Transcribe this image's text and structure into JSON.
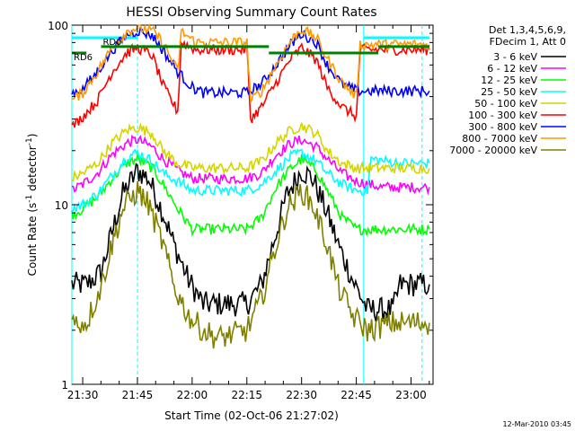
{
  "chart_data": {
    "type": "line",
    "title": "HESSI Observing Summary Count Rates",
    "xlabel": "Start Time (02-Oct-06 21:27:02)",
    "ylabel": "Count Rate (s",
    "ylabel_sup1": "-1",
    "ylabel_mid": " detector",
    "ylabel_sup2": "-1",
    "ylabel_end": ")",
    "x_unit": "minutes after 21:27:02",
    "xlim": [
      0,
      99
    ],
    "yscale": "log",
    "ylim": [
      1,
      100
    ],
    "x_ticks": [
      "21:30",
      "21:45",
      "22:00",
      "22:15",
      "22:30",
      "22:45",
      "23:00"
    ],
    "y_ticks": [
      "1",
      "10",
      "100"
    ],
    "legend_header": [
      "Det 1,3,4,5,6,9,",
      "FDecim 1, Att 0"
    ],
    "legend_position": "right",
    "series": [
      {
        "name": "3 - 6 keV",
        "color": "#000000",
        "points": [
          [
            0,
            3.6
          ],
          [
            4,
            3.6
          ],
          [
            8,
            4.2
          ],
          [
            11,
            7
          ],
          [
            14,
            11.5
          ],
          [
            18,
            15.5
          ],
          [
            21,
            14
          ],
          [
            25,
            9
          ],
          [
            28,
            6
          ],
          [
            32,
            3.8
          ],
          [
            36,
            2.8
          ],
          [
            48,
            2.8
          ],
          [
            52,
            3.6
          ],
          [
            56,
            7
          ],
          [
            59,
            11.5
          ],
          [
            63,
            15.5
          ],
          [
            66,
            14
          ],
          [
            70,
            9
          ],
          [
            73,
            6
          ],
          [
            77,
            3.8
          ],
          [
            81,
            2.6
          ],
          [
            88,
            2.6
          ],
          [
            90,
            3.6
          ],
          [
            98,
            3.6
          ]
        ]
      },
      {
        "name": "6 - 12 keV",
        "color": "#ff00ff",
        "points": [
          [
            0,
            12
          ],
          [
            3,
            13
          ],
          [
            7,
            15
          ],
          [
            11,
            19
          ],
          [
            15,
            22
          ],
          [
            18,
            23
          ],
          [
            22,
            21
          ],
          [
            25,
            18
          ],
          [
            29,
            15.5
          ],
          [
            33,
            14
          ],
          [
            48,
            14
          ],
          [
            52,
            15
          ],
          [
            56,
            19
          ],
          [
            60,
            22
          ],
          [
            63,
            23
          ],
          [
            67,
            21
          ],
          [
            70,
            18
          ],
          [
            74,
            15
          ],
          [
            78,
            13.5
          ],
          [
            85,
            12.5
          ],
          [
            90,
            12.5
          ],
          [
            98,
            12.5
          ]
        ]
      },
      {
        "name": "12 - 25 keV",
        "color": "#00ff00",
        "points": [
          [
            0,
            8.8
          ],
          [
            3,
            9.5
          ],
          [
            7,
            11
          ],
          [
            11,
            14
          ],
          [
            15,
            17
          ],
          [
            18,
            18
          ],
          [
            22,
            16
          ],
          [
            25,
            13
          ],
          [
            29,
            9.5
          ],
          [
            33,
            7.3
          ],
          [
            48,
            7.3
          ],
          [
            52,
            8.5
          ],
          [
            56,
            12.5
          ],
          [
            60,
            16
          ],
          [
            63,
            18
          ],
          [
            67,
            15.5
          ],
          [
            70,
            12
          ],
          [
            74,
            8.5
          ],
          [
            78,
            7.3
          ],
          [
            90,
            7.3
          ],
          [
            98,
            7.3
          ]
        ]
      },
      {
        "name": "25 - 50 keV",
        "color": "#00ffff",
        "points": [
          [
            0,
            9.5
          ],
          [
            3,
            10
          ],
          [
            7,
            11.5
          ],
          [
            11,
            14.5
          ],
          [
            15,
            18.5
          ],
          [
            18,
            19.5
          ],
          [
            22,
            17.5
          ],
          [
            25,
            15
          ],
          [
            29,
            13.5
          ],
          [
            33,
            12
          ],
          [
            48,
            12
          ],
          [
            52,
            13
          ],
          [
            56,
            15.5
          ],
          [
            60,
            18.5
          ],
          [
            63,
            19.5
          ],
          [
            67,
            17.5
          ],
          [
            70,
            15
          ],
          [
            74,
            13
          ],
          [
            78,
            12
          ],
          [
            81,
            12
          ],
          [
            82,
            18
          ],
          [
            90,
            17
          ],
          [
            98,
            17
          ]
        ]
      },
      {
        "name": "50 - 100 keV",
        "color": "#d4d400",
        "points": [
          [
            0,
            14
          ],
          [
            3,
            15
          ],
          [
            7,
            17
          ],
          [
            11,
            22
          ],
          [
            15,
            26
          ],
          [
            18,
            27
          ],
          [
            22,
            25
          ],
          [
            25,
            20
          ],
          [
            29,
            17
          ],
          [
            33,
            16
          ],
          [
            48,
            16
          ],
          [
            52,
            17.5
          ],
          [
            56,
            22
          ],
          [
            60,
            26
          ],
          [
            63,
            27.5
          ],
          [
            67,
            25
          ],
          [
            70,
            20
          ],
          [
            74,
            17
          ],
          [
            78,
            16
          ],
          [
            90,
            16
          ],
          [
            98,
            16
          ]
        ]
      },
      {
        "name": "100 - 300 keV",
        "color": "#ff0000",
        "points": [
          [
            0,
            27
          ],
          [
            3,
            31
          ],
          [
            7,
            38
          ],
          [
            11,
            55
          ],
          [
            15,
            70
          ],
          [
            18,
            75
          ],
          [
            22,
            68
          ],
          [
            25,
            46
          ],
          [
            29,
            33
          ],
          [
            30,
            80
          ],
          [
            34,
            73
          ],
          [
            48,
            73
          ],
          [
            49,
            30
          ],
          [
            52,
            35
          ],
          [
            56,
            48
          ],
          [
            60,
            65
          ],
          [
            63,
            75
          ],
          [
            67,
            64
          ],
          [
            70,
            45
          ],
          [
            74,
            35
          ],
          [
            78,
            31
          ],
          [
            79,
            73
          ],
          [
            90,
            73
          ],
          [
            98,
            73
          ]
        ]
      },
      {
        "name": "300 - 800 keV",
        "color": "#0000ff",
        "points": [
          [
            0,
            42
          ],
          [
            3,
            44
          ],
          [
            7,
            55
          ],
          [
            11,
            72
          ],
          [
            15,
            88
          ],
          [
            18,
            93
          ],
          [
            22,
            88
          ],
          [
            25,
            72
          ],
          [
            29,
            55
          ],
          [
            33,
            45
          ],
          [
            36,
            42
          ],
          [
            48,
            42
          ],
          [
            52,
            47
          ],
          [
            56,
            60
          ],
          [
            60,
            78
          ],
          [
            63,
            90
          ],
          [
            67,
            80
          ],
          [
            70,
            60
          ],
          [
            74,
            47
          ],
          [
            78,
            43
          ],
          [
            90,
            43
          ],
          [
            98,
            43
          ]
        ]
      },
      {
        "name": "800 - 7000 keV",
        "color": "#ff9900",
        "points": [
          [
            0,
            38
          ],
          [
            3,
            42
          ],
          [
            7,
            55
          ],
          [
            11,
            75
          ],
          [
            15,
            92
          ],
          [
            18,
            97
          ],
          [
            22,
            93
          ],
          [
            25,
            80
          ],
          [
            29,
            55
          ],
          [
            30,
            92
          ],
          [
            34,
            80
          ],
          [
            48,
            80
          ],
          [
            49,
            38
          ],
          [
            52,
            43
          ],
          [
            56,
            60
          ],
          [
            60,
            82
          ],
          [
            63,
            95
          ],
          [
            67,
            85
          ],
          [
            70,
            65
          ],
          [
            74,
            48
          ],
          [
            78,
            40
          ],
          [
            79,
            78
          ],
          [
            90,
            78
          ],
          [
            98,
            78
          ]
        ]
      },
      {
        "name": "7000 - 20000 keV",
        "color": "#808000",
        "points": [
          [
            0,
            2.2
          ],
          [
            4,
            2.2
          ],
          [
            8,
            3.5
          ],
          [
            11,
            6
          ],
          [
            14,
            9.5
          ],
          [
            18,
            12
          ],
          [
            21,
            10
          ],
          [
            25,
            6
          ],
          [
            28,
            3.5
          ],
          [
            32,
            2.4
          ],
          [
            36,
            2
          ],
          [
            40,
            1.8
          ],
          [
            48,
            2
          ],
          [
            52,
            3
          ],
          [
            56,
            6
          ],
          [
            59,
            9.5
          ],
          [
            63,
            12
          ],
          [
            66,
            10
          ],
          [
            70,
            6
          ],
          [
            73,
            3.5
          ],
          [
            77,
            2.4
          ],
          [
            81,
            2
          ],
          [
            88,
            2.2
          ],
          [
            98,
            2.2
          ]
        ]
      }
    ],
    "dashed_vertical_lines_at": [
      18,
      96
    ],
    "solid_vertical_lines_at": [
      0,
      80
    ],
    "overlays": [
      {
        "label": "RD0",
        "color": "#008000",
        "y": 76,
        "segments": [
          [
            8,
            54
          ],
          [
            84,
            98
          ]
        ]
      },
      {
        "label": "RD6",
        "color": "#008000",
        "y": 70,
        "segments": [
          [
            0,
            4
          ],
          [
            54,
            84
          ]
        ]
      }
    ],
    "cyan_top_bars": [
      [
        0,
        18
      ],
      [
        80,
        98
      ]
    ],
    "timestamp": "12-Mar-2010 03:45"
  }
}
